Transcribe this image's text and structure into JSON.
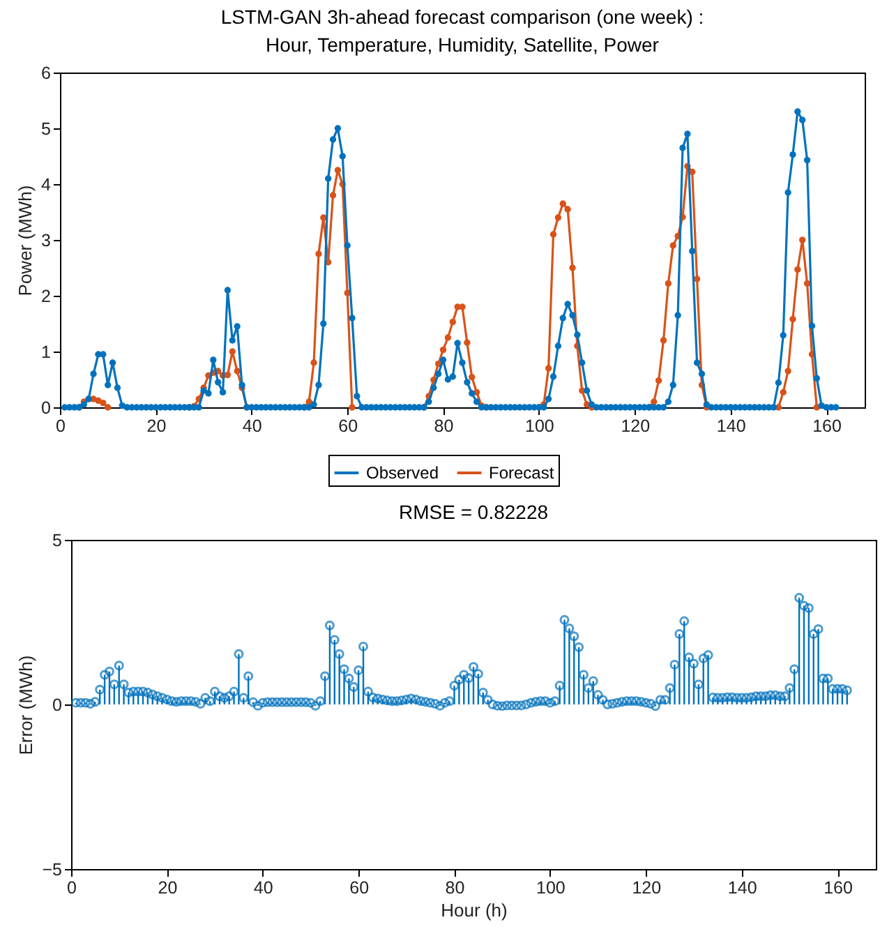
{
  "chart_data": [
    {
      "type": "line",
      "title": "LSTM-GAN 3h-ahead forecast comparison (one week) :",
      "subtitle": "Hour, Temperature, Humidity, Satellite, Power",
      "ylabel": "Power (MWh)",
      "xlim": [
        0,
        168
      ],
      "xticks": [
        0,
        20,
        40,
        60,
        80,
        100,
        120,
        140,
        160
      ],
      "ylim": [
        0,
        6
      ],
      "yticks": [
        0,
        1,
        2,
        3,
        4,
        5,
        6
      ],
      "marker": "circle",
      "legend": "bottom",
      "x": [
        1,
        2,
        3,
        4,
        5,
        6,
        7,
        8,
        9,
        10,
        11,
        12,
        13,
        14,
        15,
        16,
        17,
        18,
        19,
        20,
        21,
        22,
        23,
        24,
        25,
        26,
        27,
        28,
        29,
        30,
        31,
        32,
        33,
        34,
        35,
        36,
        37,
        38,
        39,
        40,
        41,
        42,
        43,
        44,
        45,
        46,
        47,
        48,
        49,
        50,
        51,
        52,
        53,
        54,
        55,
        56,
        57,
        58,
        59,
        60,
        61,
        62,
        63,
        64,
        65,
        66,
        67,
        68,
        69,
        70,
        71,
        72,
        73,
        74,
        75,
        76,
        77,
        78,
        79,
        80,
        81,
        82,
        83,
        84,
        85,
        86,
        87,
        88,
        89,
        90,
        91,
        92,
        93,
        94,
        95,
        96,
        97,
        98,
        99,
        100,
        101,
        102,
        103,
        104,
        105,
        106,
        107,
        108,
        109,
        110,
        111,
        112,
        113,
        114,
        115,
        116,
        117,
        118,
        119,
        120,
        121,
        122,
        123,
        124,
        125,
        126,
        127,
        128,
        129,
        130,
        131,
        132,
        133,
        134,
        135,
        136,
        137,
        138,
        139,
        140,
        141,
        142,
        143,
        144,
        145,
        146,
        147,
        148,
        149,
        150,
        151,
        152,
        153,
        154,
        155,
        156,
        157,
        158,
        159,
        160,
        161,
        162
      ],
      "series": [
        {
          "name": "Observed",
          "color": "#0072bd",
          "values": [
            0,
            0,
            0,
            0,
            0.05,
            0.15,
            0.6,
            0.95,
            0.95,
            0.4,
            0.8,
            0.35,
            0.03,
            0,
            0,
            0,
            0,
            0,
            0,
            0,
            0,
            0,
            0,
            0,
            0,
            0,
            0,
            0,
            0,
            0.3,
            0.25,
            0.85,
            0.45,
            0.27,
            2.1,
            1.2,
            1.45,
            0.4,
            0,
            0,
            0,
            0,
            0,
            0,
            0,
            0,
            0,
            0,
            0,
            0,
            0,
            0,
            0.05,
            0.4,
            1.5,
            4.1,
            4.8,
            5.0,
            4.5,
            2.9,
            1.6,
            0.2,
            0,
            0,
            0,
            0,
            0,
            0,
            0,
            0,
            0,
            0,
            0,
            0,
            0,
            0,
            0.1,
            0.35,
            0.6,
            0.85,
            0.5,
            0.55,
            1.15,
            0.8,
            0.45,
            0.25,
            0.1,
            0,
            0,
            0,
            0,
            0,
            0,
            0,
            0,
            0,
            0,
            0,
            0,
            0,
            0,
            0.15,
            0.55,
            1.1,
            1.6,
            1.85,
            1.65,
            1.3,
            0.8,
            0.3,
            0.05,
            0,
            0,
            0,
            0,
            0,
            0,
            0,
            0,
            0,
            0,
            0,
            0,
            0,
            0,
            0,
            0.1,
            0.4,
            1.65,
            4.65,
            4.9,
            2.8,
            0.8,
            0.6,
            0.05,
            0,
            0,
            0,
            0,
            0,
            0,
            0,
            0,
            0,
            0,
            0,
            0,
            0,
            0,
            0.44,
            1.29,
            3.85,
            4.53,
            5.3,
            5.15,
            4.43,
            1.46,
            0.52,
            0.03,
            0,
            0,
            0
          ]
        },
        {
          "name": "Forecast",
          "color": "#d95319",
          "values": [
            null,
            null,
            null,
            0,
            0.1,
            0.15,
            0.15,
            0.12,
            0.08,
            0,
            null,
            null,
            null,
            null,
            null,
            null,
            null,
            null,
            null,
            null,
            null,
            null,
            null,
            null,
            null,
            null,
            0,
            0.02,
            0.15,
            0.35,
            0.57,
            0.62,
            0.65,
            0.57,
            0.58,
            1.0,
            0.65,
            0.35,
            0,
            null,
            null,
            null,
            null,
            null,
            null,
            null,
            null,
            null,
            null,
            null,
            0,
            0.1,
            0.8,
            2.75,
            3.4,
            2.6,
            3.8,
            4.25,
            4.0,
            2.05,
            0,
            null,
            null,
            null,
            null,
            null,
            null,
            null,
            null,
            null,
            null,
            null,
            null,
            null,
            null,
            0,
            0.2,
            0.49,
            0.78,
            1.03,
            1.25,
            1.53,
            1.8,
            1.8,
            1.16,
            0.54,
            0.27,
            0.03,
            0,
            null,
            null,
            null,
            null,
            null,
            null,
            null,
            null,
            null,
            null,
            0,
            0.05,
            0.7,
            3.1,
            3.4,
            3.65,
            3.55,
            2.5,
            1.1,
            0.3,
            0.05,
            0,
            null,
            null,
            null,
            null,
            null,
            null,
            null,
            null,
            null,
            null,
            null,
            0,
            0.1,
            0.48,
            1.2,
            2.22,
            2.9,
            3.07,
            3.41,
            4.32,
            4.22,
            2.3,
            0.4,
            0,
            null,
            null,
            null,
            null,
            null,
            null,
            null,
            null,
            null,
            null,
            null,
            null,
            null,
            null,
            0,
            0.27,
            0.65,
            1.58,
            2.47,
            3.0,
            2.22,
            0.95,
            0,
            null,
            null,
            null,
            null
          ]
        }
      ]
    },
    {
      "type": "lollipop",
      "title": "RMSE = 0.82228",
      "xlabel": "Hour (h)",
      "ylabel": "Error (MWh)",
      "xlim": [
        0,
        168
      ],
      "xticks": [
        0,
        20,
        40,
        60,
        80,
        100,
        120,
        140,
        160
      ],
      "ylim": [
        -5,
        5
      ],
      "yticks": [
        -5,
        0,
        5
      ],
      "marker": "circle",
      "color": "#0072bd",
      "x": [
        1,
        2,
        3,
        4,
        5,
        6,
        7,
        8,
        9,
        10,
        11,
        12,
        13,
        14,
        15,
        16,
        17,
        18,
        19,
        20,
        21,
        22,
        23,
        24,
        25,
        26,
        27,
        28,
        29,
        30,
        31,
        32,
        33,
        34,
        35,
        36,
        37,
        38,
        39,
        40,
        41,
        42,
        43,
        44,
        45,
        46,
        47,
        48,
        49,
        50,
        51,
        52,
        53,
        54,
        55,
        56,
        57,
        58,
        59,
        60,
        61,
        62,
        63,
        64,
        65,
        66,
        67,
        68,
        69,
        70,
        71,
        72,
        73,
        74,
        75,
        76,
        77,
        78,
        79,
        80,
        81,
        82,
        83,
        84,
        85,
        86,
        87,
        88,
        89,
        90,
        91,
        92,
        93,
        94,
        95,
        96,
        97,
        98,
        99,
        100,
        101,
        102,
        103,
        104,
        105,
        106,
        107,
        108,
        109,
        110,
        111,
        112,
        113,
        114,
        115,
        116,
        117,
        118,
        119,
        120,
        121,
        122,
        123,
        124,
        125,
        126,
        127,
        128,
        129,
        130,
        131,
        132,
        133,
        134,
        135,
        136,
        137,
        138,
        139,
        140,
        141,
        142,
        143,
        144,
        145,
        146,
        147,
        148,
        149,
        150,
        151,
        152,
        153,
        154,
        155,
        156,
        157,
        158,
        159,
        160,
        161,
        162
      ],
      "values": [
        0.05,
        0.05,
        0.05,
        0.02,
        0.08,
        0.45,
        0.9,
        1.0,
        0.61,
        1.18,
        0.61,
        0.36,
        0.39,
        0.39,
        0.39,
        0.36,
        0.3,
        0.25,
        0.2,
        0.15,
        0.1,
        0.08,
        0.1,
        0.1,
        0.1,
        0.08,
        0.02,
        0.2,
        0.1,
        0.39,
        0.25,
        0.2,
        0.25,
        0.39,
        1.53,
        0.2,
        0.86,
        0.07,
        -0.04,
        0.05,
        0.07,
        0.07,
        0.07,
        0.07,
        0.07,
        0.07,
        0.07,
        0.07,
        0.07,
        0.05,
        -0.04,
        0.1,
        0.86,
        2.4,
        1.96,
        1.53,
        1.07,
        0.79,
        0.53,
        1.04,
        1.76,
        0.39,
        0.21,
        0.18,
        0.15,
        0.12,
        0.1,
        0.1,
        0.12,
        0.15,
        0.18,
        0.15,
        0.1,
        0.08,
        0.05,
        0.02,
        -0.04,
        0.05,
        0.1,
        0.57,
        0.75,
        0.9,
        0.8,
        1.14,
        0.93,
        0.36,
        0.14,
        0,
        -0.04,
        -0.05,
        -0.03,
        -0.03,
        -0.03,
        -0.03,
        0,
        0.05,
        0.08,
        0.1,
        0.1,
        0.05,
        0.1,
        0.57,
        2.57,
        2.31,
        2.07,
        1.74,
        0.9,
        0.5,
        0.71,
        0.29,
        0.14,
        0,
        0.02,
        0.05,
        0.08,
        0.1,
        0.1,
        0.1,
        0.08,
        0.05,
        0.02,
        -0.05,
        0.14,
        0.14,
        0.5,
        1.21,
        2.14,
        2.53,
        1.43,
        1.24,
        0.61,
        1.4,
        1.5,
        0.21,
        0.2,
        0.2,
        0.22,
        0.22,
        0.2,
        0.2,
        0.2,
        0.22,
        0.25,
        0.25,
        0.25,
        0.28,
        0.28,
        0.25,
        0.25,
        0.5,
        1.07,
        3.24,
        3.0,
        2.93,
        2.14,
        2.29,
        0.79,
        0.79,
        0.47,
        0.47,
        0.47,
        0.43
      ]
    }
  ]
}
